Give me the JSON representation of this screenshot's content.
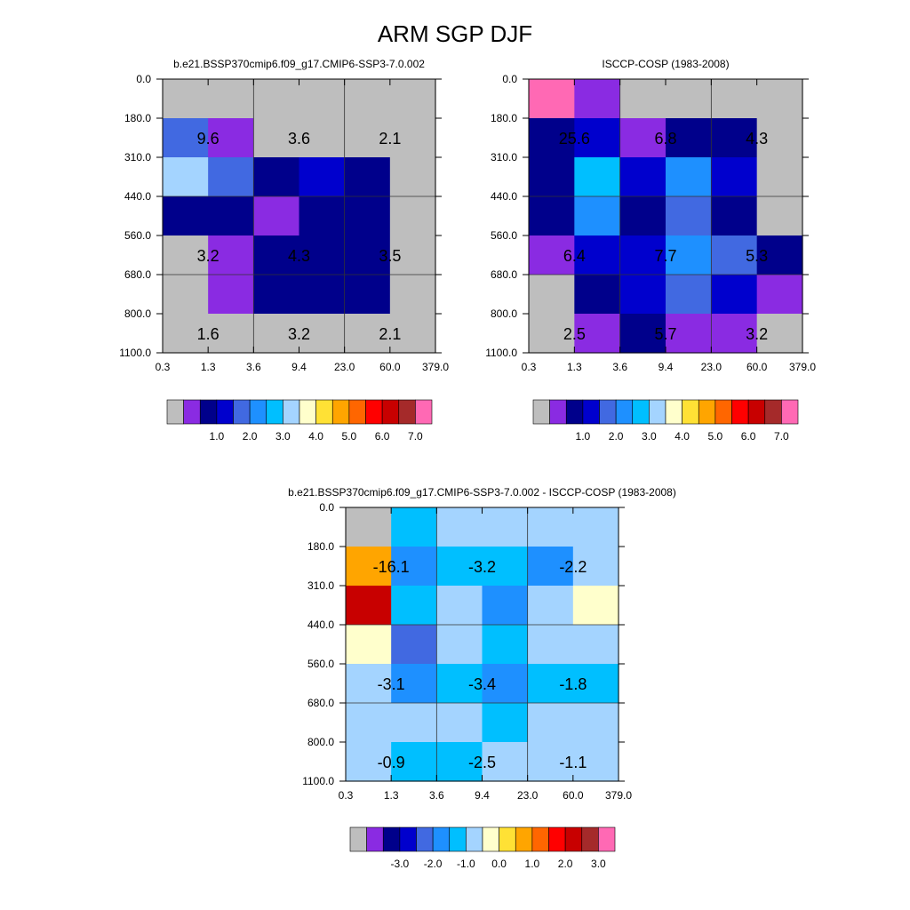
{
  "title": "ARM SGP DJF",
  "palette": [
    "#BEBEBE",
    "#8A2BE2",
    "#00008B",
    "#0000CD",
    "#4169E1",
    "#1E90FF",
    "#00BFFF",
    "#A4D4FF",
    "#FFFFCC",
    "#FFE135",
    "#FFA500",
    "#FF6600",
    "#FF0000",
    "#C80000",
    "#A52A2A",
    "#FF69B4"
  ],
  "chart_data": [
    {
      "type": "heatmap",
      "title": "b.e21.BSSP370cmip6.f09_g17.CMIP6-SSP3-7.0.002",
      "x_ticks": [
        "0.3",
        "1.3",
        "3.6",
        "9.4",
        "23.0",
        "60.0",
        "379.0"
      ],
      "y_ticks": [
        "0.0",
        "180.0",
        "310.0",
        "440.0",
        "560.0",
        "680.0",
        "800.0",
        "1100.0"
      ],
      "cell_color_index": [
        [
          0,
          0,
          0,
          0,
          0,
          0
        ],
        [
          4,
          1,
          0,
          0,
          0,
          0
        ],
        [
          7,
          4,
          2,
          3,
          2,
          0
        ],
        [
          2,
          2,
          1,
          2,
          2,
          0
        ],
        [
          0,
          1,
          2,
          2,
          2,
          0
        ],
        [
          0,
          1,
          2,
          2,
          2,
          0
        ],
        [
          0,
          0,
          0,
          0,
          0,
          0
        ]
      ],
      "labels": [
        {
          "col": 0,
          "row": 1,
          "text": "9.6"
        },
        {
          "col": 1,
          "row": 1,
          "text": "3.6"
        },
        {
          "col": 2,
          "row": 1,
          "text": "2.1"
        },
        {
          "col": 0,
          "row": 4,
          "text": "3.2"
        },
        {
          "col": 1,
          "row": 4,
          "text": "4.3"
        },
        {
          "col": 2,
          "row": 4,
          "text": "3.5"
        },
        {
          "col": 0,
          "row": 6,
          "text": "1.6"
        },
        {
          "col": 1,
          "row": 6,
          "text": "3.2"
        },
        {
          "col": 2,
          "row": 6,
          "text": "2.1"
        }
      ],
      "colorbar_labels": [
        "1.0",
        "2.0",
        "3.0",
        "4.0",
        "5.0",
        "6.0",
        "7.0"
      ]
    },
    {
      "type": "heatmap",
      "title": "ISCCP-COSP (1983-2008)",
      "x_ticks": [
        "0.3",
        "1.3",
        "3.6",
        "9.4",
        "23.0",
        "60.0",
        "379.0"
      ],
      "y_ticks": [
        "0.0",
        "180.0",
        "310.0",
        "440.0",
        "560.0",
        "680.0",
        "800.0",
        "1100.0"
      ],
      "cell_color_index": [
        [
          15,
          1,
          0,
          0,
          0,
          0
        ],
        [
          2,
          3,
          1,
          2,
          2,
          0
        ],
        [
          2,
          6,
          3,
          5,
          3,
          0
        ],
        [
          2,
          5,
          2,
          4,
          2,
          0
        ],
        [
          1,
          3,
          3,
          5,
          4,
          2
        ],
        [
          0,
          2,
          3,
          4,
          3,
          1
        ],
        [
          0,
          1,
          2,
          1,
          1,
          0
        ]
      ],
      "labels": [
        {
          "col": 0,
          "row": 1,
          "text": "25.6"
        },
        {
          "col": 1,
          "row": 1,
          "text": "6.8"
        },
        {
          "col": 2,
          "row": 1,
          "text": "4.3"
        },
        {
          "col": 0,
          "row": 4,
          "text": "6.4"
        },
        {
          "col": 1,
          "row": 4,
          "text": "7.7"
        },
        {
          "col": 2,
          "row": 4,
          "text": "5.3"
        },
        {
          "col": 0,
          "row": 6,
          "text": "2.5"
        },
        {
          "col": 1,
          "row": 6,
          "text": "5.7"
        },
        {
          "col": 2,
          "row": 6,
          "text": "3.2"
        }
      ],
      "colorbar_labels": [
        "1.0",
        "2.0",
        "3.0",
        "4.0",
        "5.0",
        "6.0",
        "7.0"
      ]
    },
    {
      "type": "heatmap",
      "title": "b.e21.BSSP370cmip6.f09_g17.CMIP6-SSP3-7.0.002 - ISCCP-COSP (1983-2008)",
      "x_ticks": [
        "0.3",
        "1.3",
        "3.6",
        "9.4",
        "23.0",
        "60.0",
        "379.0"
      ],
      "y_ticks": [
        "0.0",
        "180.0",
        "310.0",
        "440.0",
        "560.0",
        "680.0",
        "800.0",
        "1100.0"
      ],
      "cell_color_index": [
        [
          0,
          6,
          7,
          7,
          7,
          7
        ],
        [
          10,
          5,
          6,
          6,
          5,
          7
        ],
        [
          13,
          6,
          7,
          5,
          7,
          8
        ],
        [
          8,
          4,
          7,
          6,
          7,
          7
        ],
        [
          7,
          5,
          6,
          5,
          6,
          6
        ],
        [
          7,
          7,
          7,
          6,
          7,
          7
        ],
        [
          7,
          6,
          6,
          7,
          7,
          7
        ]
      ],
      "labels": [
        {
          "col": 0,
          "row": 1,
          "text": "-16.1"
        },
        {
          "col": 1,
          "row": 1,
          "text": "-3.2"
        },
        {
          "col": 2,
          "row": 1,
          "text": "-2.2"
        },
        {
          "col": 0,
          "row": 4,
          "text": "-3.1"
        },
        {
          "col": 1,
          "row": 4,
          "text": "-3.4"
        },
        {
          "col": 2,
          "row": 4,
          "text": "-1.8"
        },
        {
          "col": 0,
          "row": 6,
          "text": "-0.9"
        },
        {
          "col": 1,
          "row": 6,
          "text": "-2.5"
        },
        {
          "col": 2,
          "row": 6,
          "text": "-1.1"
        }
      ],
      "colorbar_labels": [
        "-3.0",
        "-2.0",
        "-1.0",
        "0.0",
        "1.0",
        "2.0",
        "3.0"
      ]
    }
  ]
}
